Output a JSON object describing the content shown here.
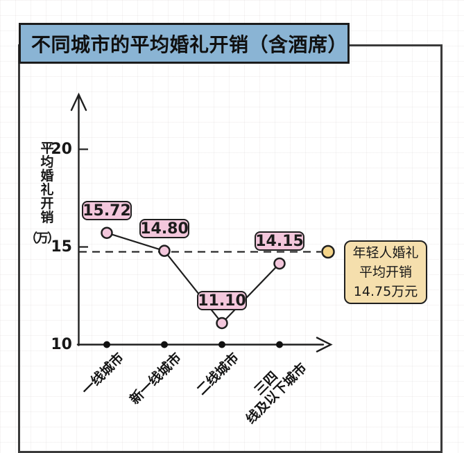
{
  "banner": {
    "title": "不同城市的平均婚礼开销（含酒席）"
  },
  "chart_data": {
    "type": "line",
    "title": "不同城市的平均婚礼开销（含酒席）",
    "categories": [
      "一线城市",
      "新一线城市",
      "二线城市",
      "三四\n线及以下城市"
    ],
    "values": [
      15.72,
      14.8,
      11.1,
      14.15
    ],
    "point_labels": [
      "15.72",
      "14.80",
      "11.10",
      "14.15"
    ],
    "ylabel_vertical": "平均婚礼开销",
    "ylabel_unit": "（万）",
    "yticks": [
      20,
      15,
      10
    ],
    "ylim": [
      10,
      21
    ],
    "grid": true,
    "legend": "none",
    "reference_line": {
      "value": 14.75,
      "label_lines": [
        "年轻人婚礼",
        "平均开销",
        "14.75万元"
      ]
    },
    "colors": {
      "banner_fill": "#8ab4d4",
      "point_fill": "#f3c7dc",
      "reference_marker_fill": "#f4d489",
      "annotation_fill": "#f5dfad",
      "line": "#1f1f1f"
    }
  }
}
